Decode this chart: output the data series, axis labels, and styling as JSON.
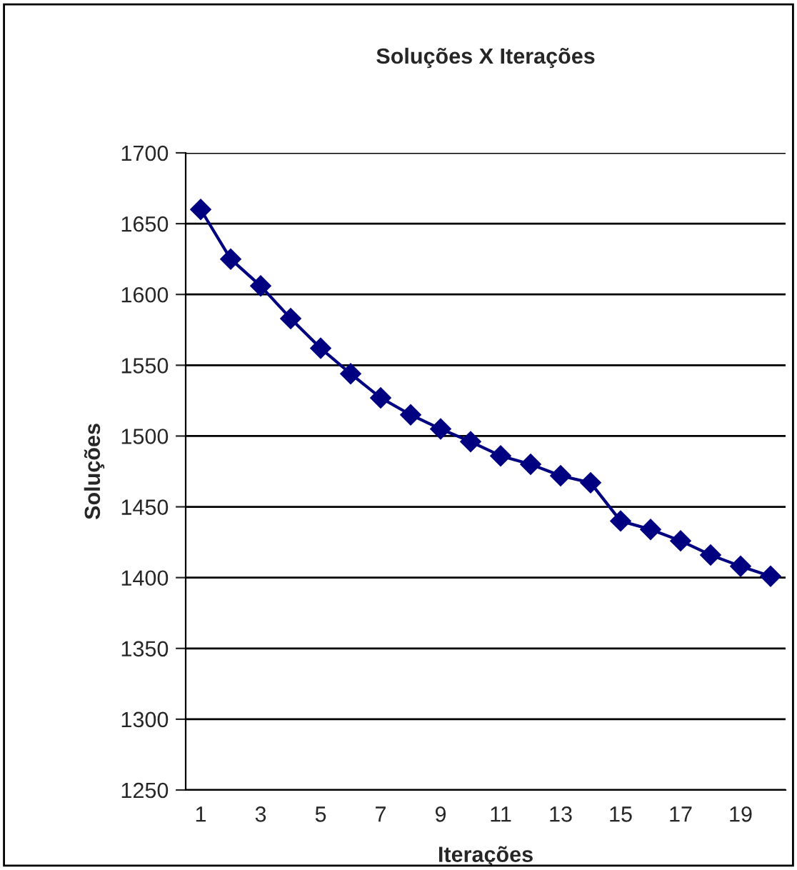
{
  "chart_data": {
    "type": "line",
    "title": "Soluções X Iterações",
    "xlabel": "Iterações",
    "ylabel": "Soluções",
    "categories": [
      "1",
      null,
      "3",
      null,
      "5",
      null,
      "7",
      null,
      "9",
      null,
      "11",
      null,
      "13",
      null,
      "15",
      null,
      "17",
      null,
      "19",
      null
    ],
    "series": [
      {
        "color": "#000080",
        "values": [
          1660,
          1625,
          1606,
          1583,
          1562,
          1544,
          1527,
          1515,
          1505,
          1496,
          1486,
          1480,
          1472,
          1467,
          1440,
          1434,
          1426,
          1416,
          1408,
          1401
        ]
      }
    ],
    "ylim": [
      1250,
      1700
    ],
    "yticks": [
      1250,
      1300,
      1350,
      1400,
      1450,
      1500,
      1550,
      1600,
      1650,
      1700
    ],
    "grid": "y",
    "marker": "diamond",
    "line_style": "solid"
  }
}
